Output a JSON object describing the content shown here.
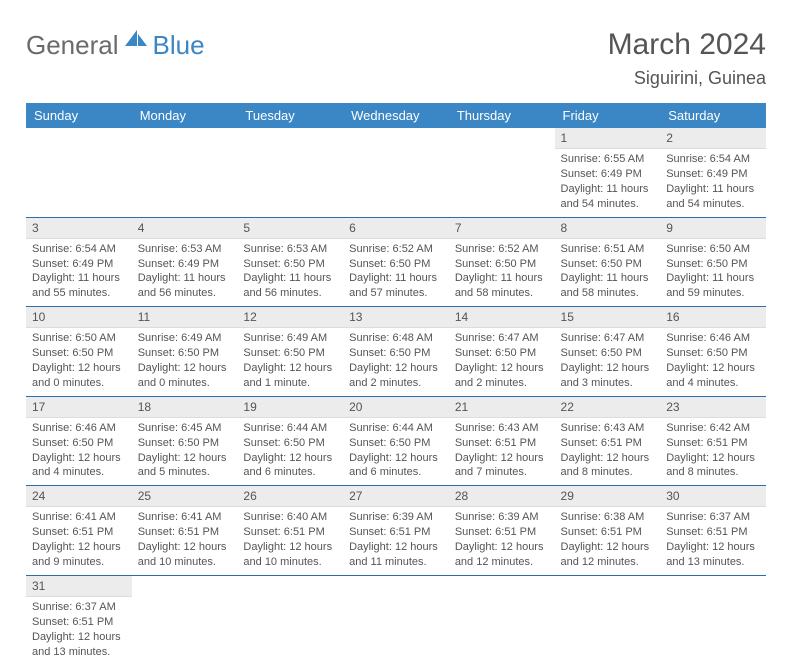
{
  "brand": {
    "part1": "General",
    "part2": "Blue"
  },
  "title": {
    "month": "March 2024",
    "location": "Siguirini, Guinea"
  },
  "colors": {
    "header": "#3b86c4",
    "rowgrey": "#ececec",
    "rowline": "#2d6da8"
  },
  "dayHeaders": [
    "Sunday",
    "Monday",
    "Tuesday",
    "Wednesday",
    "Thursday",
    "Friday",
    "Saturday"
  ],
  "weeks": [
    [
      {
        "n": "",
        "lines": []
      },
      {
        "n": "",
        "lines": []
      },
      {
        "n": "",
        "lines": []
      },
      {
        "n": "",
        "lines": []
      },
      {
        "n": "",
        "lines": []
      },
      {
        "n": "1",
        "lines": [
          "Sunrise: 6:55 AM",
          "Sunset: 6:49 PM",
          "Daylight: 11 hours",
          "and 54 minutes."
        ]
      },
      {
        "n": "2",
        "lines": [
          "Sunrise: 6:54 AM",
          "Sunset: 6:49 PM",
          "Daylight: 11 hours",
          "and 54 minutes."
        ]
      }
    ],
    [
      {
        "n": "3",
        "lines": [
          "Sunrise: 6:54 AM",
          "Sunset: 6:49 PM",
          "Daylight: 11 hours",
          "and 55 minutes."
        ]
      },
      {
        "n": "4",
        "lines": [
          "Sunrise: 6:53 AM",
          "Sunset: 6:49 PM",
          "Daylight: 11 hours",
          "and 56 minutes."
        ]
      },
      {
        "n": "5",
        "lines": [
          "Sunrise: 6:53 AM",
          "Sunset: 6:50 PM",
          "Daylight: 11 hours",
          "and 56 minutes."
        ]
      },
      {
        "n": "6",
        "lines": [
          "Sunrise: 6:52 AM",
          "Sunset: 6:50 PM",
          "Daylight: 11 hours",
          "and 57 minutes."
        ]
      },
      {
        "n": "7",
        "lines": [
          "Sunrise: 6:52 AM",
          "Sunset: 6:50 PM",
          "Daylight: 11 hours",
          "and 58 minutes."
        ]
      },
      {
        "n": "8",
        "lines": [
          "Sunrise: 6:51 AM",
          "Sunset: 6:50 PM",
          "Daylight: 11 hours",
          "and 58 minutes."
        ]
      },
      {
        "n": "9",
        "lines": [
          "Sunrise: 6:50 AM",
          "Sunset: 6:50 PM",
          "Daylight: 11 hours",
          "and 59 minutes."
        ]
      }
    ],
    [
      {
        "n": "10",
        "lines": [
          "Sunrise: 6:50 AM",
          "Sunset: 6:50 PM",
          "Daylight: 12 hours",
          "and 0 minutes."
        ]
      },
      {
        "n": "11",
        "lines": [
          "Sunrise: 6:49 AM",
          "Sunset: 6:50 PM",
          "Daylight: 12 hours",
          "and 0 minutes."
        ]
      },
      {
        "n": "12",
        "lines": [
          "Sunrise: 6:49 AM",
          "Sunset: 6:50 PM",
          "Daylight: 12 hours",
          "and 1 minute."
        ]
      },
      {
        "n": "13",
        "lines": [
          "Sunrise: 6:48 AM",
          "Sunset: 6:50 PM",
          "Daylight: 12 hours",
          "and 2 minutes."
        ]
      },
      {
        "n": "14",
        "lines": [
          "Sunrise: 6:47 AM",
          "Sunset: 6:50 PM",
          "Daylight: 12 hours",
          "and 2 minutes."
        ]
      },
      {
        "n": "15",
        "lines": [
          "Sunrise: 6:47 AM",
          "Sunset: 6:50 PM",
          "Daylight: 12 hours",
          "and 3 minutes."
        ]
      },
      {
        "n": "16",
        "lines": [
          "Sunrise: 6:46 AM",
          "Sunset: 6:50 PM",
          "Daylight: 12 hours",
          "and 4 minutes."
        ]
      }
    ],
    [
      {
        "n": "17",
        "lines": [
          "Sunrise: 6:46 AM",
          "Sunset: 6:50 PM",
          "Daylight: 12 hours",
          "and 4 minutes."
        ]
      },
      {
        "n": "18",
        "lines": [
          "Sunrise: 6:45 AM",
          "Sunset: 6:50 PM",
          "Daylight: 12 hours",
          "and 5 minutes."
        ]
      },
      {
        "n": "19",
        "lines": [
          "Sunrise: 6:44 AM",
          "Sunset: 6:50 PM",
          "Daylight: 12 hours",
          "and 6 minutes."
        ]
      },
      {
        "n": "20",
        "lines": [
          "Sunrise: 6:44 AM",
          "Sunset: 6:50 PM",
          "Daylight: 12 hours",
          "and 6 minutes."
        ]
      },
      {
        "n": "21",
        "lines": [
          "Sunrise: 6:43 AM",
          "Sunset: 6:51 PM",
          "Daylight: 12 hours",
          "and 7 minutes."
        ]
      },
      {
        "n": "22",
        "lines": [
          "Sunrise: 6:43 AM",
          "Sunset: 6:51 PM",
          "Daylight: 12 hours",
          "and 8 minutes."
        ]
      },
      {
        "n": "23",
        "lines": [
          "Sunrise: 6:42 AM",
          "Sunset: 6:51 PM",
          "Daylight: 12 hours",
          "and 8 minutes."
        ]
      }
    ],
    [
      {
        "n": "24",
        "lines": [
          "Sunrise: 6:41 AM",
          "Sunset: 6:51 PM",
          "Daylight: 12 hours",
          "and 9 minutes."
        ]
      },
      {
        "n": "25",
        "lines": [
          "Sunrise: 6:41 AM",
          "Sunset: 6:51 PM",
          "Daylight: 12 hours",
          "and 10 minutes."
        ]
      },
      {
        "n": "26",
        "lines": [
          "Sunrise: 6:40 AM",
          "Sunset: 6:51 PM",
          "Daylight: 12 hours",
          "and 10 minutes."
        ]
      },
      {
        "n": "27",
        "lines": [
          "Sunrise: 6:39 AM",
          "Sunset: 6:51 PM",
          "Daylight: 12 hours",
          "and 11 minutes."
        ]
      },
      {
        "n": "28",
        "lines": [
          "Sunrise: 6:39 AM",
          "Sunset: 6:51 PM",
          "Daylight: 12 hours",
          "and 12 minutes."
        ]
      },
      {
        "n": "29",
        "lines": [
          "Sunrise: 6:38 AM",
          "Sunset: 6:51 PM",
          "Daylight: 12 hours",
          "and 12 minutes."
        ]
      },
      {
        "n": "30",
        "lines": [
          "Sunrise: 6:37 AM",
          "Sunset: 6:51 PM",
          "Daylight: 12 hours",
          "and 13 minutes."
        ]
      }
    ],
    [
      {
        "n": "31",
        "lines": [
          "Sunrise: 6:37 AM",
          "Sunset: 6:51 PM",
          "Daylight: 12 hours",
          "and 13 minutes."
        ]
      },
      {
        "n": "",
        "lines": []
      },
      {
        "n": "",
        "lines": []
      },
      {
        "n": "",
        "lines": []
      },
      {
        "n": "",
        "lines": []
      },
      {
        "n": "",
        "lines": []
      },
      {
        "n": "",
        "lines": []
      }
    ]
  ]
}
